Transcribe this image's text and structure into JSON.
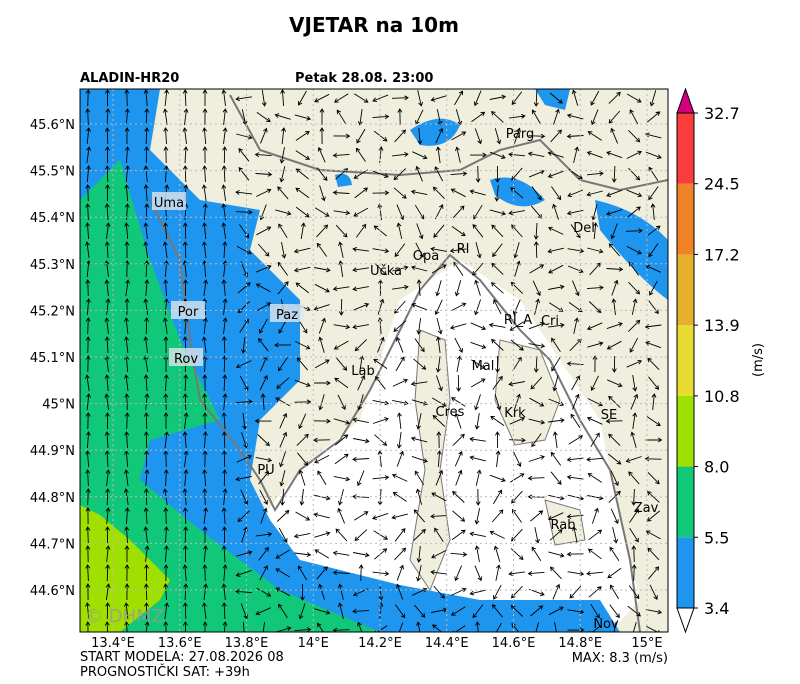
{
  "header": {
    "title": "VJETAR na 10m",
    "model": "ALADIN-HR20",
    "valid_time": "Petak 28.08. 23:00"
  },
  "map": {
    "lat_labels": [
      "45.6°N",
      "45.5°N",
      "45.4°N",
      "45.3°N",
      "45.2°N",
      "45.1°N",
      "45°N",
      "44.9°N",
      "44.8°N",
      "44.7°N",
      "44.6°N"
    ],
    "lon_labels": [
      "13.4°E",
      "13.6°E",
      "13.8°E",
      "14°E",
      "14.2°E",
      "14.4°E",
      "14.6°E",
      "14.8°E",
      "15°E"
    ],
    "places": [
      "Uma",
      "Por",
      "Rov",
      "Paz",
      "PU",
      "Lab",
      "Učka",
      "Opa",
      "RI",
      "Parg",
      "Del",
      "RI_A",
      "Cri",
      "Mal",
      "Cres",
      "Krk",
      "SE",
      "Zav",
      "Rab",
      "Nov"
    ],
    "watermark": "© DHMZ"
  },
  "colorbar": {
    "ticks": [
      3.4,
      5.5,
      {
        "value": 8,
        "label": "8.0"
      },
      10.8,
      13.9,
      17.2,
      24.5,
      32.7
    ],
    "colors": [
      "#1e96f0",
      "#10c878",
      "#a0e000",
      "#e6dc32",
      "#e6af2d",
      "#f08228",
      "#fa3c3c"
    ],
    "over_color": "#d2007d",
    "unit": "(m/s)"
  },
  "footer": {
    "start": "START MODELA: 27.08.2026 08",
    "forecast_hour": "PROGNOSTIČKI SAT: +39h",
    "max": "MAX: 8.3 (m/s)"
  }
}
